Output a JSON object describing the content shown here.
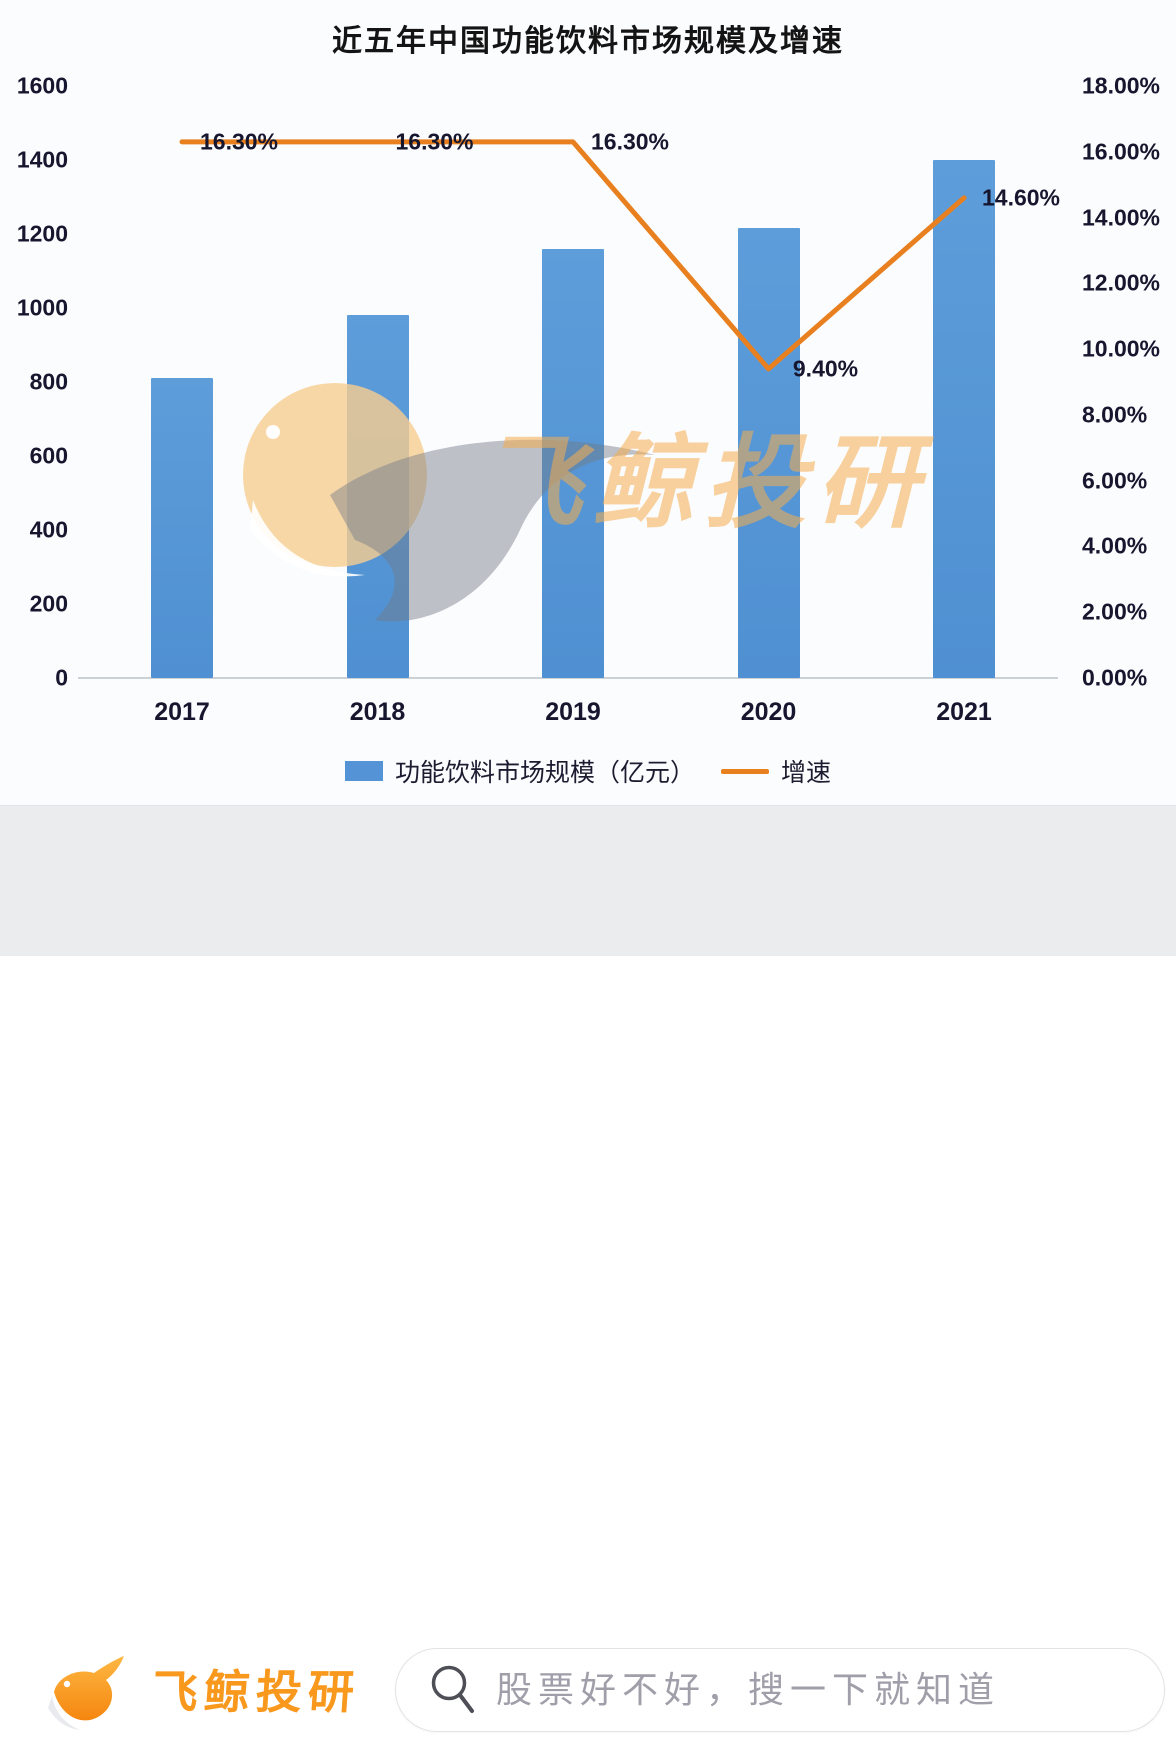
{
  "chart_data": {
    "type": "bar",
    "combo": "bar+line dual axis",
    "title": "近五年中国功能饮料市场规模及增速",
    "categories": [
      "2017",
      "2018",
      "2019",
      "2020",
      "2021"
    ],
    "series": [
      {
        "name": "功能饮料市场规模（亿元）",
        "type": "bar",
        "axis": "left",
        "color": "#5494d6",
        "values": [
          810,
          980,
          1160,
          1215,
          1400
        ]
      },
      {
        "name": "增速",
        "type": "line",
        "axis": "right",
        "color": "#e8801f",
        "values": [
          16.3,
          16.3,
          16.3,
          9.4,
          14.6
        ],
        "point_labels": [
          "16.30%",
          "16.30%",
          "16.30%",
          "9.40%",
          "14.60%"
        ]
      }
    ],
    "left_axis": {
      "min": 0,
      "max": 1600,
      "step": 200,
      "tick_labels": [
        "1600",
        "1400",
        "1200",
        "1000",
        "800",
        "600",
        "400",
        "200",
        "0"
      ]
    },
    "right_axis": {
      "min": 0,
      "max": 18,
      "step": 2,
      "tick_labels": [
        "18.00%",
        "16.00%",
        "14.00%",
        "12.00%",
        "10.00%",
        "8.00%",
        "6.00%",
        "4.00%",
        "2.00%",
        "0.00%"
      ]
    },
    "grid": false,
    "legend_position": "bottom"
  },
  "watermark_text": "飞鲸投研",
  "banner": {
    "logo_text": "飞鲸投研",
    "search_placeholder": "股票好不好，搜一下就知道"
  },
  "colors": {
    "bar_blue": "#5494d6",
    "line_orange": "#e8801f",
    "brand_orange": "#f8981d",
    "banner_gray": "#ebecee",
    "watermark_orange": "#f6ad4e"
  }
}
